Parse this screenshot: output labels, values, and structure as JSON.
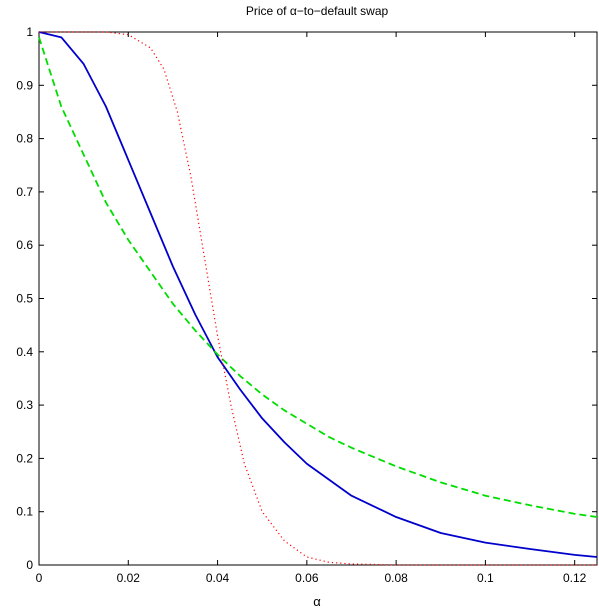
{
  "chart_data": {
    "type": "line",
    "title": "Price of α−to−default swap",
    "xlabel": "α",
    "ylabel": "",
    "xlim": [
      0,
      0.125
    ],
    "ylim": [
      0,
      1
    ],
    "grid": false,
    "x_ticks": [
      0,
      0.02,
      0.04,
      0.06,
      0.08,
      0.1,
      0.12
    ],
    "x_tick_labels": [
      "0",
      "0.02",
      "0.04",
      "0.06",
      "0.08",
      "0.1",
      "0.12"
    ],
    "y_ticks": [
      0,
      0.1,
      0.2,
      0.3,
      0.4,
      0.5,
      0.6,
      0.7,
      0.8,
      0.9,
      1
    ],
    "y_tick_labels": [
      "0",
      "0.1",
      "0.2",
      "0.3",
      "0.4",
      "0.5",
      "0.6",
      "0.7",
      "0.8",
      "0.9",
      "1"
    ],
    "series": [
      {
        "style": "solid",
        "color": "#0000cc",
        "x": [
          0,
          0.005,
          0.01,
          0.015,
          0.02,
          0.025,
          0.03,
          0.035,
          0.04,
          0.045,
          0.05,
          0.055,
          0.06,
          0.065,
          0.07,
          0.08,
          0.09,
          0.1,
          0.11,
          0.12,
          0.125
        ],
        "y": [
          1.0,
          0.99,
          0.94,
          0.86,
          0.76,
          0.66,
          0.56,
          0.47,
          0.39,
          0.33,
          0.275,
          0.23,
          0.19,
          0.16,
          0.13,
          0.09,
          0.06,
          0.042,
          0.03,
          0.019,
          0.015
        ]
      },
      {
        "style": "dashed",
        "color": "#00dd00",
        "x": [
          0,
          0.005,
          0.01,
          0.015,
          0.02,
          0.025,
          0.03,
          0.035,
          0.04,
          0.045,
          0.05,
          0.055,
          0.06,
          0.065,
          0.07,
          0.08,
          0.09,
          0.1,
          0.11,
          0.12,
          0.125
        ],
        "y": [
          0.99,
          0.86,
          0.77,
          0.68,
          0.61,
          0.55,
          0.49,
          0.44,
          0.395,
          0.355,
          0.32,
          0.29,
          0.265,
          0.24,
          0.22,
          0.185,
          0.155,
          0.13,
          0.112,
          0.096,
          0.09
        ]
      },
      {
        "style": "dotted",
        "color": "#ff0000",
        "x": [
          0,
          0.01,
          0.015,
          0.02,
          0.025,
          0.028,
          0.031,
          0.034,
          0.037,
          0.04,
          0.043,
          0.046,
          0.05,
          0.055,
          0.06,
          0.065,
          0.07,
          0.08,
          0.1,
          0.125
        ],
        "y": [
          1.0,
          1.0,
          1.0,
          0.995,
          0.97,
          0.93,
          0.85,
          0.73,
          0.58,
          0.43,
          0.3,
          0.19,
          0.1,
          0.045,
          0.015,
          0.005,
          0.002,
          0.0,
          0.0,
          0.0
        ]
      }
    ]
  }
}
